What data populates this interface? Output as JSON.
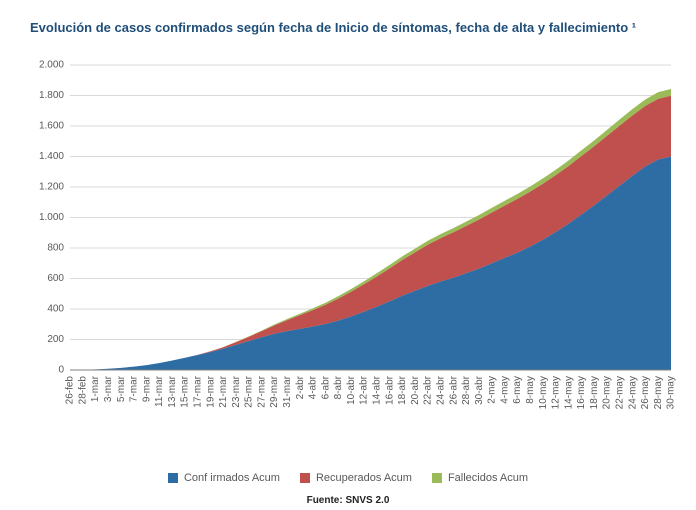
{
  "chart": {
    "type": "area-stacked",
    "title": "Evolución de casos confirmados según fecha de Inicio de síntomas, fecha de alta y fallecimiento ¹",
    "title_color": "#1f4e79",
    "title_fontsize": 13,
    "background_color": "#ffffff",
    "grid_color": "#d9d9d9",
    "axis_color": "#808080",
    "label_color": "#595959",
    "label_fontsize": 10,
    "ylim": [
      0,
      2000
    ],
    "ytick_step": 200,
    "y_tick_format": "dot-thousands",
    "categories": [
      "26-feb",
      "28-feb",
      "1-mar",
      "3-mar",
      "5-mar",
      "7-mar",
      "9-mar",
      "11-mar",
      "13-mar",
      "15-mar",
      "17-mar",
      "19-mar",
      "21-mar",
      "23-mar",
      "25-mar",
      "27-mar",
      "29-mar",
      "31-mar",
      "2-abr",
      "4-abr",
      "6-abr",
      "8-abr",
      "10-abr",
      "12-abr",
      "14-abr",
      "16-abr",
      "18-abr",
      "20-abr",
      "22-abr",
      "24-abr",
      "26-abr",
      "28-abr",
      "30-abr",
      "2-may",
      "4-may",
      "6-may",
      "8-may",
      "10-may",
      "12-may",
      "14-may",
      "16-may",
      "18-may",
      "20-may",
      "22-may",
      "24-may",
      "26-may",
      "28-may",
      "30-may"
    ],
    "series": [
      {
        "name": "Conf irmados Acum",
        "color": "#2e6ca4",
        "values": [
          1,
          2,
          4,
          8,
          14,
          22,
          32,
          46,
          62,
          80,
          98,
          118,
          140,
          165,
          190,
          215,
          238,
          255,
          270,
          285,
          302,
          325,
          352,
          382,
          415,
          450,
          488,
          520,
          552,
          580,
          605,
          635,
          665,
          700,
          735,
          770,
          810,
          855,
          905,
          960,
          1020,
          1080,
          1145,
          1210,
          1275,
          1335,
          1380,
          1400
        ]
      },
      {
        "name": "Recuperados Acum",
        "color": "#c0504d",
        "values": [
          0,
          0,
          0,
          0,
          0,
          0,
          0,
          0,
          0,
          0,
          2,
          5,
          10,
          18,
          28,
          40,
          55,
          72,
          90,
          108,
          126,
          144,
          162,
          180,
          198,
          216,
          234,
          252,
          270,
          285,
          298,
          310,
          322,
          333,
          343,
          352,
          360,
          367,
          373,
          378,
          383,
          387,
          390,
          393,
          395,
          397,
          398,
          398
        ]
      },
      {
        "name": "Fallecidos Acum",
        "color": "#9bbb59",
        "values": [
          0,
          0,
          0,
          0,
          0,
          0,
          0,
          0,
          0,
          0,
          0,
          0,
          1,
          2,
          3,
          4,
          6,
          8,
          10,
          12,
          14,
          16,
          18,
          20,
          22,
          23,
          24,
          25,
          26,
          27,
          28,
          29,
          30,
          31,
          32,
          33,
          34,
          35,
          36,
          37,
          38,
          39,
          40,
          41,
          42,
          43,
          44,
          45
        ]
      }
    ],
    "source": "Fuente: SNVS 2.0"
  }
}
